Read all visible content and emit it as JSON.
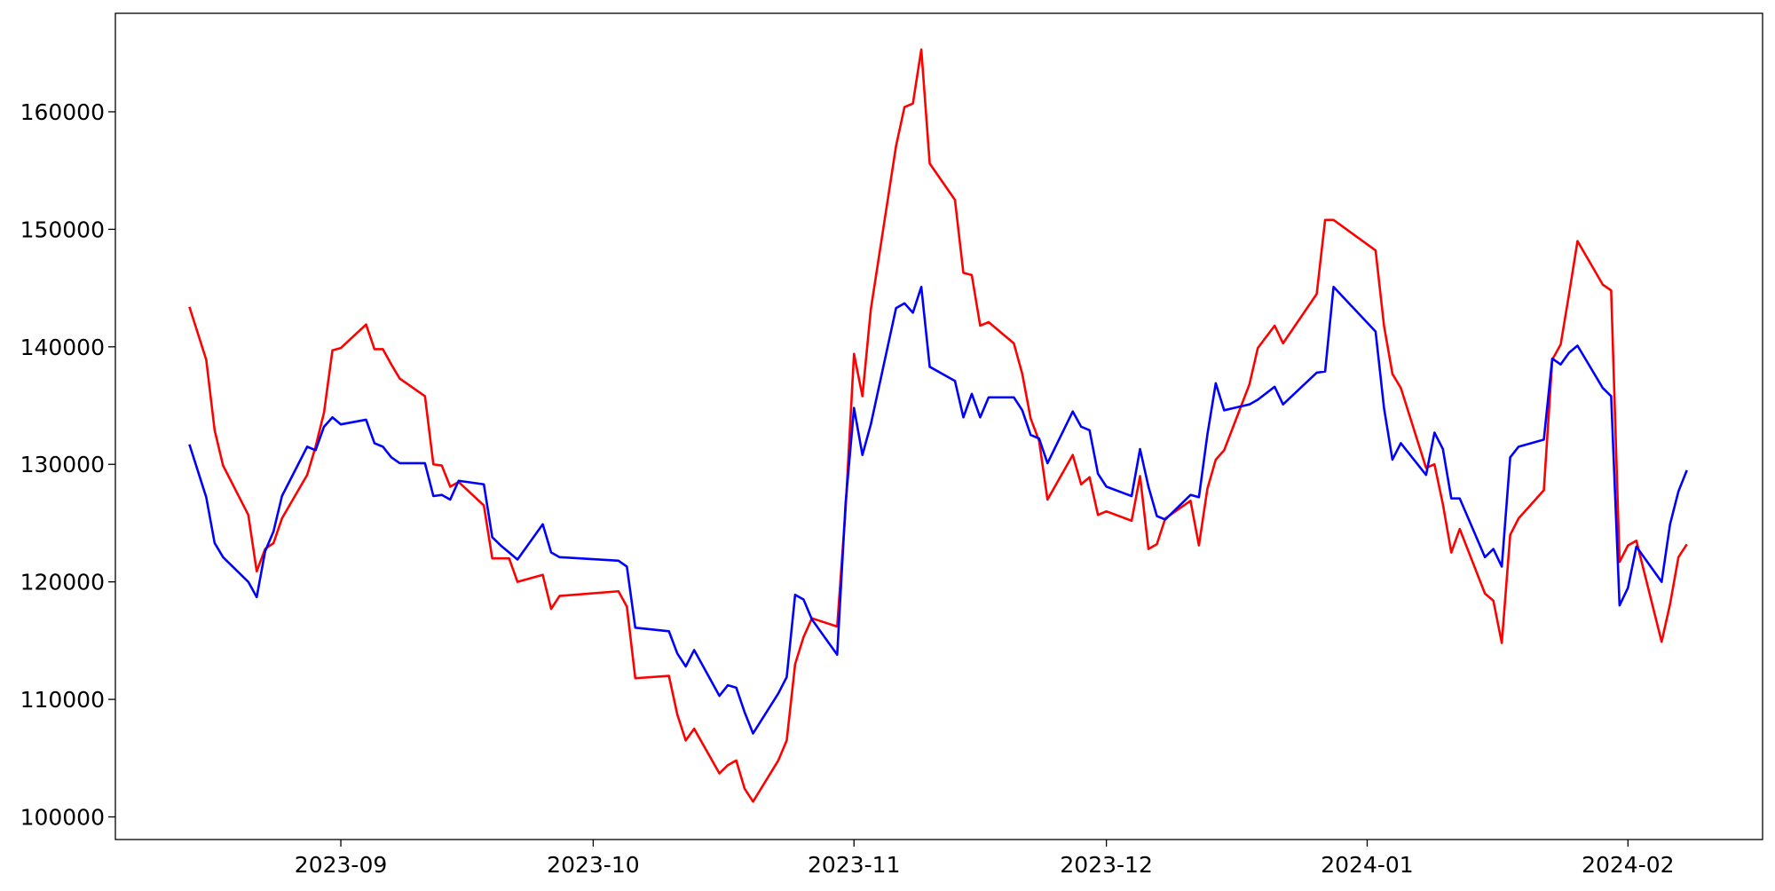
{
  "chart_data": {
    "type": "line",
    "x": [
      19583,
      19585,
      19586,
      19587,
      19590,
      19591,
      19592,
      19593,
      19594,
      19597,
      19598,
      19599,
      19600,
      19601,
      19604,
      19605,
      19606,
      19607,
      19608,
      19611,
      19612,
      19613,
      19614,
      19615,
      19618,
      19619,
      19620,
      19621,
      19622,
      19625,
      19626,
      19627,
      19634,
      19635,
      19636,
      19640,
      19641,
      19642,
      19643,
      19646,
      19647,
      19648,
      19649,
      19650,
      19653,
      19654,
      19655,
      19656,
      19657,
      19660,
      19661,
      19662,
      19663,
      19664,
      19667,
      19668,
      19669,
      19670,
      19671,
      19674,
      19675,
      19676,
      19677,
      19678,
      19681,
      19682,
      19683,
      19684,
      19685,
      19688,
      19689,
      19690,
      19691,
      19692,
      19695,
      19696,
      19697,
      19698,
      19699,
      19702,
      19703,
      19704,
      19705,
      19706,
      19709,
      19710,
      19712,
      19713,
      19717,
      19718,
      19719,
      19724,
      19725,
      19726,
      19727,
      19730,
      19731,
      19732,
      19733,
      19734,
      19737,
      19738,
      19739,
      19740,
      19741,
      19744,
      19745,
      19746,
      19747,
      19748,
      19751,
      19752,
      19753,
      19754,
      19755,
      19758,
      19759,
      19760,
      19761
    ],
    "series": [
      {
        "color": "#ff0000",
        "values": [
          143400,
          138900,
          132900,
          129900,
          125700,
          120900,
          122800,
          123300,
          125400,
          129100,
          131500,
          134400,
          139700,
          139900,
          141900,
          139800,
          139800,
          138500,
          137300,
          135800,
          130000,
          129900,
          128100,
          128500,
          126500,
          122000,
          122000,
          122000,
          120000,
          120600,
          117700,
          118800,
          119200,
          117900,
          111800,
          112000,
          108700,
          106500,
          107500,
          103700,
          104400,
          104800,
          102400,
          101300,
          104800,
          106500,
          113000,
          115300,
          116900,
          116200,
          126200,
          139400,
          135800,
          143200,
          157100,
          160400,
          160700,
          165300,
          155600,
          152500,
          146300,
          146100,
          141800,
          142100,
          140300,
          137700,
          133900,
          132000,
          127000,
          130800,
          128300,
          128900,
          125700,
          126000,
          125200,
          129000,
          122800,
          123200,
          125400,
          126900,
          123100,
          127900,
          130400,
          131200,
          136800,
          139900,
          141800,
          140300,
          144500,
          150800,
          150800,
          148200,
          141800,
          137700,
          136500,
          129700,
          130000,
          126600,
          122500,
          124500,
          119000,
          118400,
          114800,
          124000,
          125400,
          127800,
          138900,
          140200,
          144500,
          149000,
          145300,
          144800,
          121700,
          123100,
          123500,
          114900,
          118100,
          122100,
          123200
        ]
      },
      {
        "color": "#0000ff",
        "values": [
          131700,
          127200,
          123300,
          122100,
          120000,
          118700,
          122600,
          124300,
          127300,
          131500,
          131200,
          133200,
          134000,
          133400,
          133800,
          131800,
          131500,
          130600,
          130100,
          130100,
          127300,
          127400,
          127000,
          128600,
          128300,
          123800,
          123100,
          122500,
          121900,
          124900,
          122500,
          122100,
          121800,
          121300,
          116100,
          115800,
          113900,
          112800,
          114200,
          110300,
          111200,
          111000,
          108900,
          107100,
          110500,
          111900,
          118900,
          118500,
          116800,
          113800,
          126700,
          134800,
          130800,
          133400,
          143300,
          143700,
          142900,
          145100,
          138300,
          137100,
          134000,
          136000,
          134000,
          135700,
          135700,
          134600,
          132500,
          132200,
          130100,
          134500,
          133200,
          132900,
          129200,
          128100,
          127300,
          131300,
          128100,
          125600,
          125300,
          127400,
          127200,
          132500,
          136900,
          134600,
          135100,
          135500,
          136600,
          135100,
          137800,
          137900,
          145100,
          141300,
          134800,
          130400,
          131800,
          129100,
          132700,
          131300,
          127100,
          127100,
          122100,
          122800,
          121300,
          130600,
          131500,
          132100,
          139000,
          138500,
          139500,
          140100,
          136500,
          135800,
          118000,
          119500,
          123000,
          120000,
          124900,
          127700,
          129500
        ]
      }
    ],
    "xlim": [
      19574.2,
      19770
    ],
    "xticks": [
      {
        "value": 19601,
        "label": "2023-09"
      },
      {
        "value": 19631,
        "label": "2023-10"
      },
      {
        "value": 19662,
        "label": "2023-11"
      },
      {
        "value": 19692,
        "label": "2023-12"
      },
      {
        "value": 19723,
        "label": "2024-01"
      },
      {
        "value": 19754,
        "label": "2024-02"
      }
    ],
    "ylim": [
      98074,
      168380
    ],
    "yticks": [
      100000,
      110000,
      120000,
      130000,
      140000,
      150000,
      160000
    ],
    "grid": false
  }
}
